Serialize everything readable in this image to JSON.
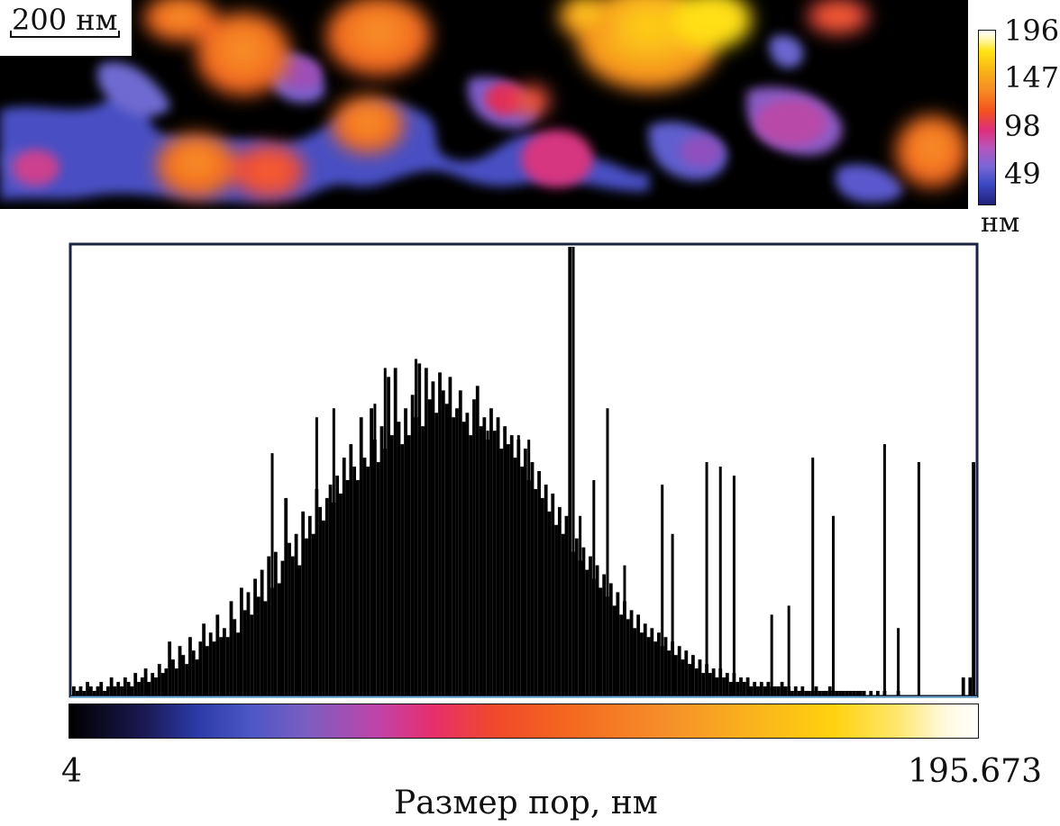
{
  "scale_bar": {
    "label": "200 нм"
  },
  "colorbar": {
    "tick_labels": [
      "196",
      "147",
      "98",
      "49"
    ],
    "unit": "нм",
    "colors": [
      "#20207a",
      "#3d4bc5",
      "#7b66d6",
      "#b457c0",
      "#df2f79",
      "#f4541d",
      "#f68d24",
      "#f8b019",
      "#ffe312",
      "#ffffff"
    ]
  },
  "chart_data": {
    "type": "bar",
    "xlabel": "Размер пор, нм",
    "ylabel": "",
    "x_min_label": "4",
    "x_max_label": "195.673",
    "xlim": [
      4,
      195.673
    ],
    "ylim": [
      0,
      100
    ],
    "series": [
      {
        "values": [
          2,
          1,
          2,
          1,
          3,
          2,
          1,
          2,
          3,
          1,
          2,
          4,
          2,
          3,
          2,
          4,
          3,
          2,
          5,
          3,
          4,
          6,
          3,
          5,
          4,
          7,
          5,
          6,
          12,
          8,
          6,
          11,
          9,
          7,
          13,
          10,
          8,
          12,
          16,
          11,
          14,
          12,
          18,
          13,
          15,
          13,
          21,
          17,
          14,
          24,
          19,
          23,
          18,
          26,
          22,
          28,
          21,
          31,
          24,
          32,
          25,
          30,
          44,
          34,
          31,
          36,
          29,
          41,
          35,
          40,
          36,
          46,
          42,
          39,
          44,
          47,
          43,
          49,
          45,
          53,
          48,
          56,
          51,
          48,
          62,
          53,
          51,
          64,
          57,
          52,
          60,
          55,
          71,
          58,
          73,
          61,
          56,
          64,
          58,
          67,
          62,
          74,
          60,
          73,
          66,
          70,
          63,
          72,
          68,
          65,
          71,
          62,
          64,
          68,
          61,
          63,
          58,
          66,
          69,
          60,
          62,
          57,
          64,
          59,
          62,
          55,
          60,
          56,
          58,
          53,
          57,
          51,
          55,
          48,
          52,
          46,
          50,
          44,
          47,
          41,
          45,
          38,
          42,
          36,
          40,
          100,
          32,
          35,
          30,
          33,
          28,
          31,
          26,
          29,
          24,
          27,
          22,
          25,
          20,
          23,
          18,
          21,
          17,
          19,
          15,
          18,
          14,
          16,
          13,
          15,
          12,
          14,
          11,
          13,
          10,
          12,
          9,
          11,
          8,
          10,
          7,
          9,
          6,
          8,
          5,
          7,
          5,
          6,
          4,
          6,
          4,
          5,
          3,
          5,
          3,
          4,
          3,
          4,
          2,
          3,
          2,
          3,
          2,
          3,
          2,
          2,
          2,
          3,
          2,
          2,
          1,
          2,
          1,
          2,
          1,
          1,
          1,
          2,
          1,
          1,
          1,
          2,
          1,
          1,
          1,
          1,
          1,
          1,
          1,
          1,
          1,
          1,
          0,
          1,
          0,
          1,
          0,
          1,
          0,
          0,
          0,
          1,
          0,
          0,
          0,
          0,
          0,
          0,
          0,
          0,
          0,
          0,
          0,
          0,
          0,
          0,
          0,
          0,
          0,
          0,
          4,
          0,
          4,
          52
        ]
      }
    ],
    "spikes": [
      {
        "bin": 58,
        "value": 54
      },
      {
        "bin": 71,
        "value": 62
      },
      {
        "bin": 76,
        "value": 64
      },
      {
        "bin": 88,
        "value": 65
      },
      {
        "bin": 91,
        "value": 73
      },
      {
        "bin": 100,
        "value": 75
      },
      {
        "bin": 103,
        "value": 73
      },
      {
        "bin": 117,
        "value": 61
      },
      {
        "bin": 121,
        "value": 59
      },
      {
        "bin": 130,
        "value": 58
      },
      {
        "bin": 133,
        "value": 57
      },
      {
        "bin": 146,
        "value": 100
      },
      {
        "bin": 148,
        "value": 40
      },
      {
        "bin": 152,
        "value": 48
      },
      {
        "bin": 156,
        "value": 64
      },
      {
        "bin": 161,
        "value": 29
      },
      {
        "bin": 172,
        "value": 47
      },
      {
        "bin": 175,
        "value": 36
      },
      {
        "bin": 185,
        "value": 52
      },
      {
        "bin": 189,
        "value": 51
      },
      {
        "bin": 193,
        "value": 49
      },
      {
        "bin": 204,
        "value": 18
      },
      {
        "bin": 209,
        "value": 20
      },
      {
        "bin": 216,
        "value": 53
      },
      {
        "bin": 222,
        "value": 40
      },
      {
        "bin": 237,
        "value": 56
      },
      {
        "bin": 241,
        "value": 15
      },
      {
        "bin": 247,
        "value": 52
      }
    ],
    "colors": [
      "#000000",
      "#1a1850",
      "#2b3aa6",
      "#4d57c6",
      "#7a5ec2",
      "#c043a9",
      "#e72f6b",
      "#f04a2a",
      "#f4681f",
      "#f6902a",
      "#f9b21c",
      "#ffd20f",
      "#ffe66a",
      "#ffffff"
    ]
  }
}
